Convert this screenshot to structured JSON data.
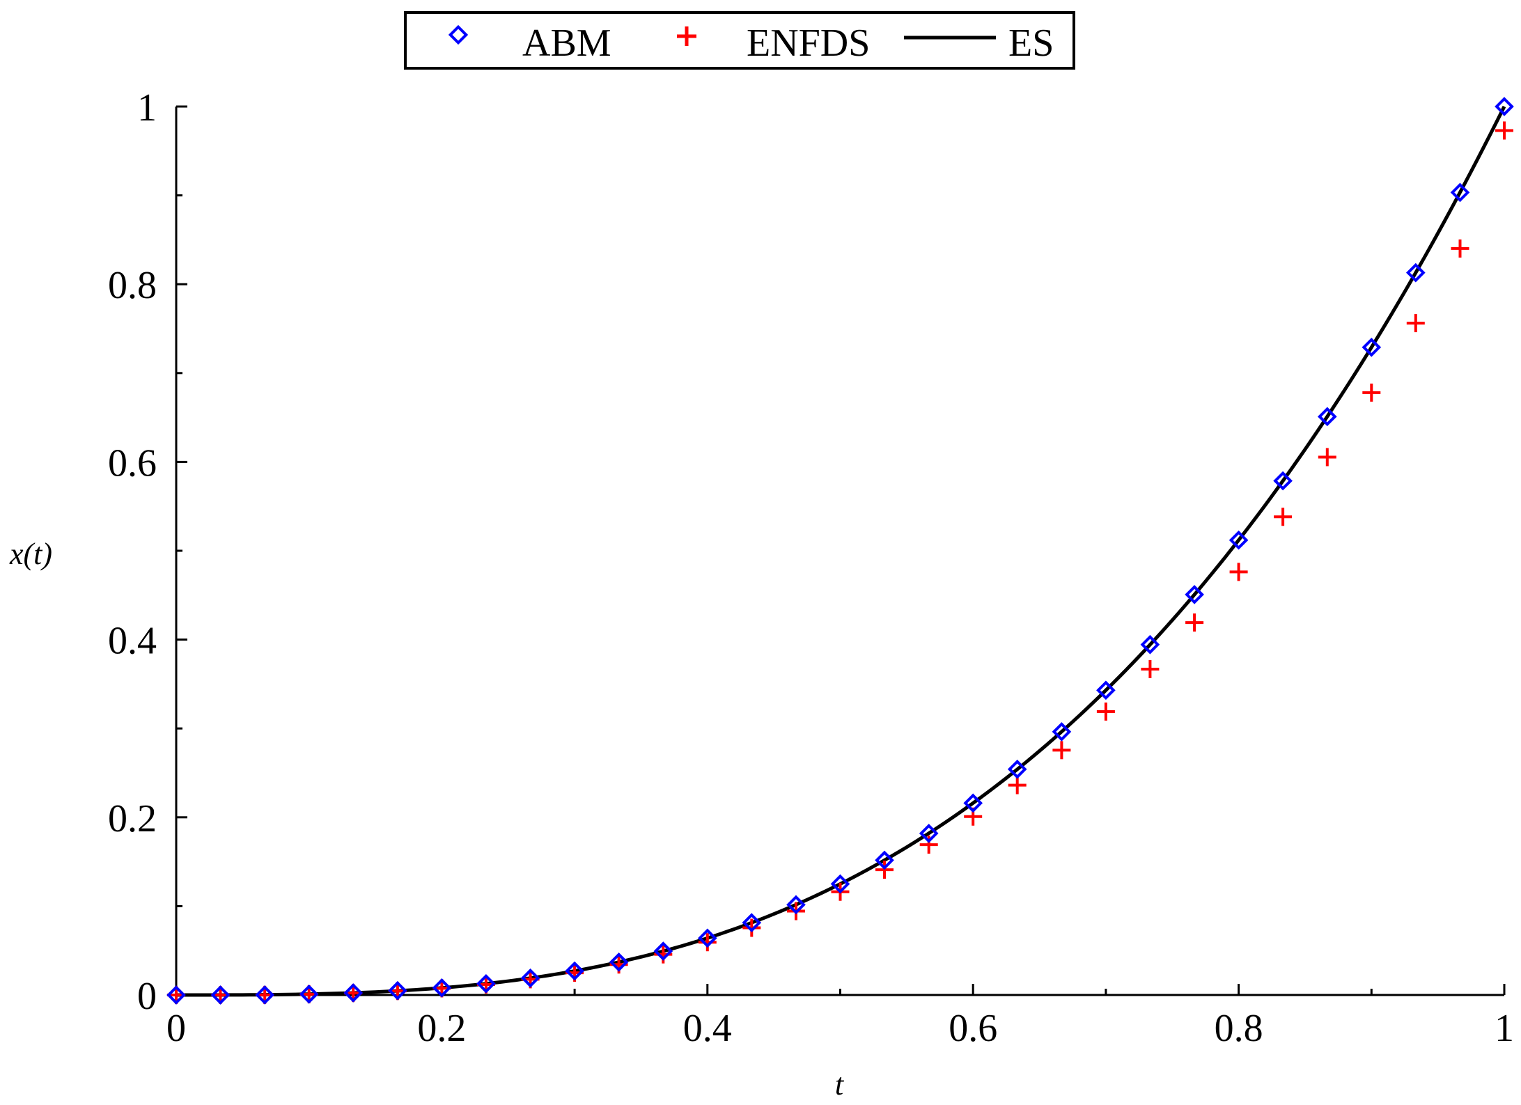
{
  "chart_data": {
    "type": "scatter",
    "title": "",
    "xlabel": "t",
    "ylabel": "x(t)",
    "xlim": [
      0,
      1
    ],
    "ylim": [
      0,
      1
    ],
    "x_ticks": [
      0,
      0.2,
      0.4,
      0.6,
      0.8,
      1
    ],
    "x_tick_labels": [
      "0",
      "0.2",
      "0.4",
      "0.6",
      "0.8",
      "1"
    ],
    "y_ticks": [
      0,
      0.2,
      0.4,
      0.6,
      0.8,
      1
    ],
    "y_tick_labels": [
      "0",
      "0.2",
      "0.4",
      "0.6",
      "0.8",
      "1"
    ],
    "grid": false,
    "legend_position": "top-center",
    "series": [
      {
        "name": "ABM",
        "marker": "diamond",
        "color": "#0000ff",
        "x": [
          0,
          0.0333,
          0.0667,
          0.1,
          0.1333,
          0.1667,
          0.2,
          0.2333,
          0.2667,
          0.3,
          0.3333,
          0.3667,
          0.4,
          0.4333,
          0.4667,
          0.5,
          0.5333,
          0.5667,
          0.6,
          0.6333,
          0.6667,
          0.7,
          0.7333,
          0.7667,
          0.8,
          0.8333,
          0.8667,
          0.9,
          0.9333,
          0.9667,
          1
        ],
        "y": [
          0,
          0.0,
          0.0001,
          0.0009,
          0.0024,
          0.0049,
          0.008,
          0.0127,
          0.019,
          0.027,
          0.037,
          0.0493,
          0.064,
          0.0814,
          0.1016,
          0.125,
          0.1517,
          0.1819,
          0.216,
          0.2541,
          0.2963,
          0.343,
          0.3944,
          0.4507,
          0.512,
          0.5787,
          0.651,
          0.729,
          0.813,
          0.9033,
          1.0
        ]
      },
      {
        "name": "ENFDS",
        "marker": "plus",
        "color": "#ff0000",
        "x": [
          0,
          0.0333,
          0.0667,
          0.1,
          0.1333,
          0.1667,
          0.2,
          0.2333,
          0.2667,
          0.3,
          0.3333,
          0.3667,
          0.4,
          0.4333,
          0.4667,
          0.5,
          0.5333,
          0.5667,
          0.6,
          0.6333,
          0.6667,
          0.7,
          0.7333,
          0.7667,
          0.8,
          0.8333,
          0.8667,
          0.9,
          0.9333,
          0.9667,
          1
        ],
        "y": [
          0,
          0.0,
          0.0001,
          0.0008,
          0.0022,
          0.0045,
          0.0075,
          0.0118,
          0.0177,
          0.025,
          0.0343,
          0.0457,
          0.0594,
          0.0756,
          0.0944,
          0.1162,
          0.141,
          0.1692,
          0.2008,
          0.2362,
          0.2756,
          0.319,
          0.3668,
          0.4192,
          0.4762,
          0.5382,
          0.6054,
          0.678,
          0.7562,
          0.8402,
          0.973
        ]
      },
      {
        "name": "ES",
        "marker": "line",
        "color": "#000000",
        "function": "t^3"
      }
    ]
  },
  "legend": {
    "items": [
      "ABM",
      "ENFDS",
      "ES"
    ]
  }
}
